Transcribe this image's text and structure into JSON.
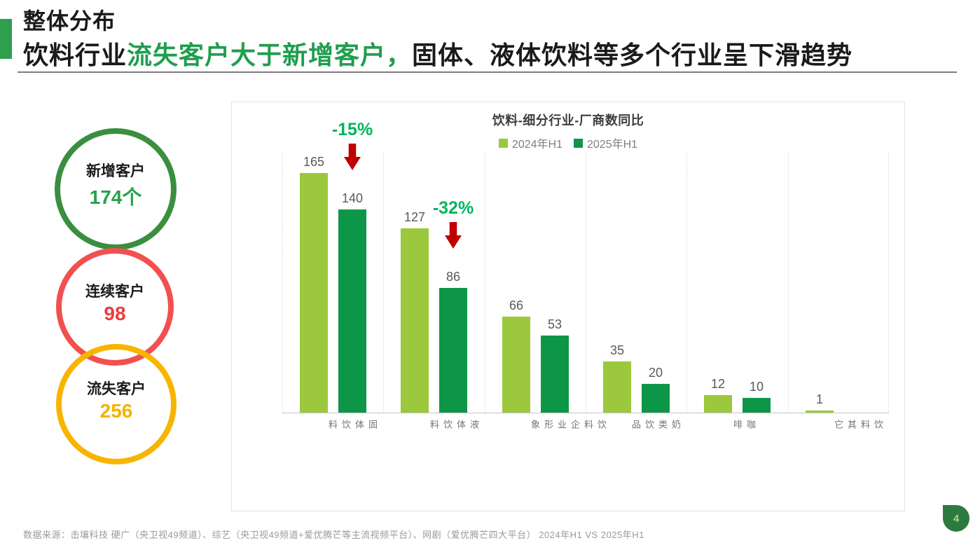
{
  "slide": {
    "kicker": "整体分布",
    "headline_segments": [
      {
        "text": "饮料行业",
        "color": "#1a1a1a"
      },
      {
        "text": "流失客户大于新增客户，",
        "color": "#1f9e4e"
      },
      {
        "text": "固体、液体饮料等多个行业呈下滑趋势",
        "color": "#1a1a1a"
      }
    ],
    "accent_color": "#2e9e4f",
    "divider_color": "#7d7d7d",
    "footer_source": "数据来源：击壤科技 硬广（央卫视49频道）、综艺（央卫视49频道+爱优腾芒等主流视频平台）、网剧（爱优腾芒四大平台） 2024年H1 VS 2025年H1",
    "page_number": "4",
    "page_badge_color": "#2c7a3f",
    "page_number_color": "#a9d977"
  },
  "stats": [
    {
      "label": "新增客户",
      "value": "174个",
      "ring_color": "#3a8f3f",
      "value_color": "#27a24f"
    },
    {
      "label": "连续客户",
      "value": "98",
      "ring_color": "#f25050",
      "value_color": "#ee3b3b"
    },
    {
      "label": "流失客户",
      "value": "256",
      "ring_color": "#f7b500",
      "value_color": "#f2b200"
    }
  ],
  "chart_data": {
    "type": "bar",
    "title": "饮料-细分行业-厂商数同比",
    "categories": [
      "固体饮料",
      "液体饮料",
      "饮料企业形象",
      "奶类饮品",
      "咖啡",
      "饮料其它"
    ],
    "series": [
      {
        "name": "2024年H1",
        "color": "#9bc83c",
        "values": [
          165,
          127,
          66,
          35,
          12,
          1
        ]
      },
      {
        "name": "2025年H1",
        "color": "#0e9648",
        "values": [
          140,
          86,
          53,
          20,
          10,
          0
        ]
      }
    ],
    "annotations": [
      {
        "category": "固体饮料",
        "text": "-15%",
        "text_color": "#00b55c",
        "arrow_color": "#c00000"
      },
      {
        "category": "液体饮料",
        "text": "-32%",
        "text_color": "#00b55c",
        "arrow_color": "#c00000"
      }
    ],
    "ylim": [
      0,
      180
    ],
    "xlabel": "",
    "ylabel": "",
    "grid": "vertical-dotted",
    "legend_position": "top",
    "value_labels": true
  }
}
